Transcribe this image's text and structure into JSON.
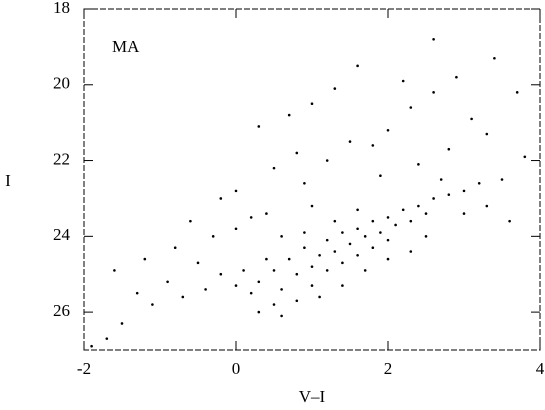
{
  "chart_data": {
    "type": "scatter",
    "annotation": "MA",
    "x_label": "V–I",
    "y_label": "I",
    "xlim": [
      -2,
      4
    ],
    "xticks": [
      -2,
      0,
      2,
      4
    ],
    "ylim": [
      18,
      27
    ],
    "yticks": [
      18,
      20,
      22,
      24,
      26
    ],
    "y_inverted": true,
    "color": "#000000",
    "points": [
      [
        0.3,
        25.2
      ],
      [
        0.5,
        24.9
      ],
      [
        0.6,
        25.4
      ],
      [
        0.7,
        24.6
      ],
      [
        0.8,
        25.0
      ],
      [
        0.9,
        24.3
      ],
      [
        1.0,
        24.8
      ],
      [
        1.0,
        25.3
      ],
      [
        1.1,
        24.5
      ],
      [
        1.2,
        24.1
      ],
      [
        1.2,
        24.9
      ],
      [
        1.3,
        24.4
      ],
      [
        1.4,
        23.9
      ],
      [
        1.4,
        24.7
      ],
      [
        1.5,
        24.2
      ],
      [
        1.6,
        23.8
      ],
      [
        1.6,
        24.5
      ],
      [
        1.7,
        24.0
      ],
      [
        1.8,
        23.6
      ],
      [
        1.8,
        24.3
      ],
      [
        1.9,
        23.9
      ],
      [
        2.0,
        23.5
      ],
      [
        2.0,
        24.1
      ],
      [
        2.1,
        23.7
      ],
      [
        2.2,
        23.3
      ],
      [
        2.3,
        23.6
      ],
      [
        2.4,
        23.2
      ],
      [
        2.5,
        23.4
      ],
      [
        2.6,
        23.0
      ],
      [
        2.8,
        22.9
      ],
      [
        3.0,
        22.8
      ],
      [
        3.2,
        22.6
      ],
      [
        0.4,
        24.6
      ],
      [
        0.2,
        25.5
      ],
      [
        0.1,
        24.9
      ],
      [
        0.0,
        25.3
      ],
      [
        -0.2,
        25.0
      ],
      [
        -0.4,
        25.4
      ],
      [
        -0.5,
        24.7
      ],
      [
        -0.7,
        25.6
      ],
      [
        -0.9,
        25.2
      ],
      [
        -1.1,
        25.8
      ],
      [
        -1.3,
        25.5
      ],
      [
        -1.5,
        26.3
      ],
      [
        -1.6,
        24.9
      ],
      [
        -0.8,
        24.3
      ],
      [
        -0.3,
        24.0
      ],
      [
        0.0,
        23.8
      ],
      [
        0.2,
        23.5
      ],
      [
        -1.9,
        26.9
      ],
      [
        -1.7,
        26.7
      ],
      [
        0.5,
        25.8
      ],
      [
        0.8,
        25.7
      ],
      [
        1.1,
        25.6
      ],
      [
        0.3,
        26.0
      ],
      [
        0.6,
        26.1
      ],
      [
        1.4,
        25.3
      ],
      [
        1.7,
        24.9
      ],
      [
        2.0,
        24.6
      ],
      [
        2.3,
        24.4
      ],
      [
        2.5,
        24.0
      ],
      [
        0.9,
        23.9
      ],
      [
        1.3,
        23.6
      ],
      [
        1.6,
        23.3
      ],
      [
        0.6,
        24.0
      ],
      [
        0.4,
        23.4
      ],
      [
        1.0,
        23.2
      ],
      [
        0.5,
        22.2
      ],
      [
        0.8,
        21.8
      ],
      [
        1.2,
        22.0
      ],
      [
        1.5,
        21.5
      ],
      [
        1.8,
        21.6
      ],
      [
        2.0,
        21.2
      ],
      [
        2.3,
        20.6
      ],
      [
        2.6,
        20.2
      ],
      [
        2.9,
        19.8
      ],
      [
        3.1,
        20.9
      ],
      [
        3.4,
        19.3
      ],
      [
        3.7,
        20.2
      ],
      [
        2.8,
        21.7
      ],
      [
        3.5,
        22.5
      ],
      [
        3.3,
        21.3
      ],
      [
        0.0,
        22.8
      ],
      [
        -0.2,
        23.0
      ],
      [
        0.7,
        20.8
      ],
      [
        1.0,
        20.5
      ],
      [
        1.6,
        19.5
      ],
      [
        2.2,
        19.9
      ],
      [
        3.8,
        21.9
      ],
      [
        0.3,
        21.1
      ],
      [
        2.4,
        22.1
      ],
      [
        1.9,
        22.4
      ],
      [
        0.9,
        22.6
      ],
      [
        -0.6,
        23.6
      ],
      [
        -1.2,
        24.6
      ],
      [
        2.7,
        22.5
      ],
      [
        3.0,
        23.4
      ],
      [
        3.3,
        23.2
      ],
      [
        1.3,
        20.1
      ],
      [
        2.6,
        18.8
      ],
      [
        3.6,
        23.6
      ]
    ]
  }
}
